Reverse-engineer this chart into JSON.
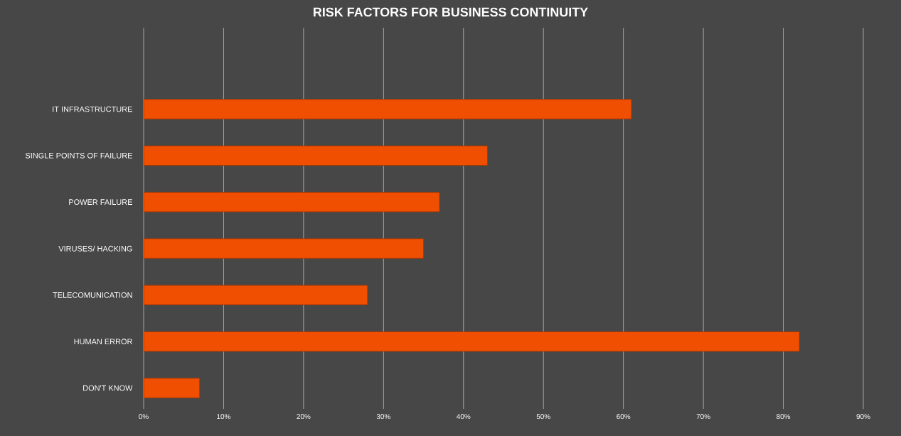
{
  "chart_data": {
    "type": "bar",
    "orientation": "horizontal",
    "title": "RISK FACTORS FOR BUSINESS CONTINUITY",
    "categories": [
      "IT INFRASTRUCTURE",
      "SINGLE POINTS OF FAILURE",
      "POWER FAILURE",
      "VIRUSES/ HACKING",
      "TELECOMUNICATION",
      "HUMAN ERROR",
      "DON'T KNOW"
    ],
    "values": [
      61,
      43,
      37,
      35,
      28,
      82,
      7
    ],
    "color": "#f04e00",
    "xlim": [
      0,
      90
    ],
    "xticks": [
      {
        "value": 0,
        "label": "0%"
      },
      {
        "value": 10,
        "label": "10%"
      },
      {
        "value": 20,
        "label": "20%"
      },
      {
        "value": 30,
        "label": "30%"
      },
      {
        "value": 40,
        "label": "40%"
      },
      {
        "value": 50,
        "label": "50%"
      },
      {
        "value": 60,
        "label": "60%"
      },
      {
        "value": 70,
        "label": "70%"
      },
      {
        "value": 80,
        "label": "80%"
      },
      {
        "value": 90,
        "label": "90%"
      }
    ],
    "grid": "x"
  }
}
